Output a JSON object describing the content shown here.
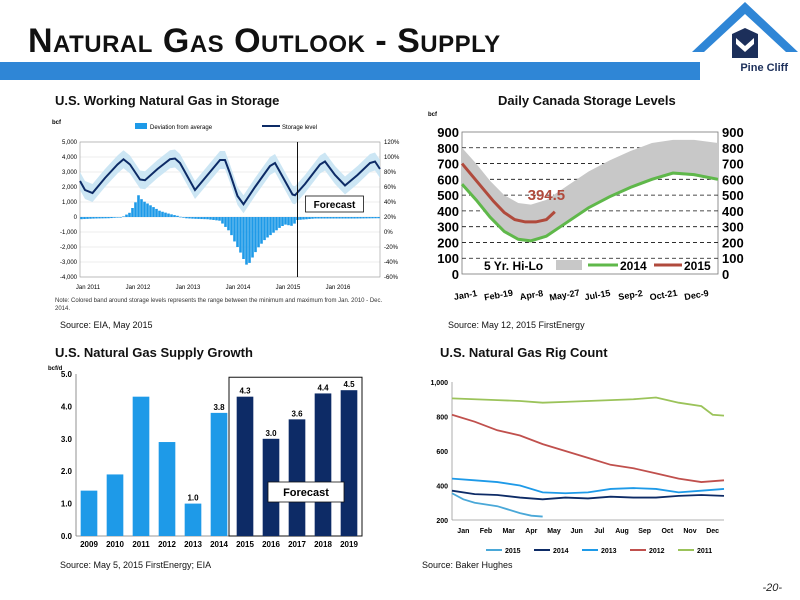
{
  "slide": {
    "title": "Natural Gas Outlook - Supply",
    "logo_text": "Pine Cliff",
    "page_number": "-20-"
  },
  "colors": {
    "band": "#2f86d6",
    "navy": "#0d2b66",
    "lightblue": "#1e9ae8",
    "shade": "#c7e3f3"
  },
  "panels": {
    "storage": {
      "title": "U.S. Working Natural Gas in Storage",
      "unit": "bcf",
      "legend": [
        "Deviation from average",
        "Storage level"
      ],
      "forecast_label": "Forecast",
      "note": "Note: Colored band around storage levels represents the range between the minimum and maximum from Jan. 2010 - Dec. 2014.",
      "source": "Source: EIA, May 2015"
    },
    "canada": {
      "title": "Daily Canada Storage Levels",
      "unit": "bcf",
      "callout": "394.5",
      "source": "Source: May 12, 2015 FirstEnergy"
    },
    "supply": {
      "title": "U.S. Natural Gas Supply Growth",
      "unit": "bcf/d",
      "forecast_label": "Forecast",
      "source": "Source: May 5, 2015 FirstEnergy; EIA"
    },
    "rigs": {
      "title": "U.S. Natural Gas Rig Count",
      "source": "Source: Baker Hughes"
    }
  },
  "chart_data": [
    {
      "type": "line",
      "title": "U.S. Working Natural Gas in Storage",
      "x_ticks": [
        "Jan 2011",
        "Jan 2012",
        "Jan 2013",
        "Jan 2014",
        "Jan 2015",
        "Jan 2016"
      ],
      "y_ticks": [
        "-4,000",
        "-3,000",
        "-2,000",
        "-1,000",
        "0",
        "1,000",
        "2,000",
        "3,000",
        "4,000",
        "5,000"
      ],
      "y2_ticks": [
        "-60%",
        "-40%",
        "-20%",
        "0%",
        "20%",
        "40%",
        "60%",
        "80%",
        "100%",
        "120%"
      ],
      "ylim": [
        -4000,
        5000
      ],
      "x_range": [
        2011.0,
        2017.0
      ],
      "forecast_start": 2015.35,
      "series": [
        {
          "name": "Storage level",
          "points": [
            [
              2011.0,
              2400
            ],
            [
              2011.1,
              1800
            ],
            [
              2011.25,
              1600
            ],
            [
              2011.5,
              2600
            ],
            [
              2011.75,
              3500
            ],
            [
              2011.87,
              3850
            ],
            [
              2012.0,
              3500
            ],
            [
              2012.2,
              2500
            ],
            [
              2012.3,
              2450
            ],
            [
              2012.55,
              3200
            ],
            [
              2012.8,
              3850
            ],
            [
              2012.9,
              3900
            ],
            [
              2013.0,
              3600
            ],
            [
              2013.15,
              2700
            ],
            [
              2013.3,
              1800
            ],
            [
              2013.55,
              2800
            ],
            [
              2013.8,
              3800
            ],
            [
              2013.9,
              3800
            ],
            [
              2014.0,
              2900
            ],
            [
              2014.15,
              1400
            ],
            [
              2014.27,
              850
            ],
            [
              2014.5,
              2000
            ],
            [
              2014.8,
              3400
            ],
            [
              2014.9,
              3600
            ],
            [
              2015.05,
              2700
            ],
            [
              2015.25,
              1500
            ],
            [
              2015.3,
              1450
            ],
            [
              2015.5,
              2200
            ],
            [
              2015.8,
              3500
            ],
            [
              2015.9,
              3700
            ],
            [
              2016.1,
              2800
            ],
            [
              2016.3,
              2100
            ],
            [
              2016.55,
              2800
            ],
            [
              2016.8,
              3600
            ],
            [
              2016.9,
              3700
            ],
            [
              2017.0,
              3200
            ]
          ]
        },
        {
          "name": "Deviation from average",
          "points": [
            [
              2011.0,
              -150
            ],
            [
              2011.3,
              -100
            ],
            [
              2011.6,
              -80
            ],
            [
              2011.85,
              0
            ],
            [
              2012.0,
              300
            ],
            [
              2012.1,
              900
            ],
            [
              2012.17,
              1450
            ],
            [
              2012.25,
              1100
            ],
            [
              2012.4,
              800
            ],
            [
              2012.6,
              400
            ],
            [
              2012.8,
              200
            ],
            [
              2012.95,
              80
            ],
            [
              2013.1,
              -80
            ],
            [
              2013.3,
              -120
            ],
            [
              2013.55,
              -150
            ],
            [
              2013.8,
              -250
            ],
            [
              2014.0,
              -1000
            ],
            [
              2014.1,
              -1700
            ],
            [
              2014.2,
              -2300
            ],
            [
              2014.27,
              -2800
            ],
            [
              2014.35,
              -3300
            ],
            [
              2014.45,
              -2700
            ],
            [
              2014.55,
              -2100
            ],
            [
              2014.7,
              -1500
            ],
            [
              2014.85,
              -1100
            ],
            [
              2015.0,
              -700
            ],
            [
              2015.1,
              -500
            ],
            [
              2015.25,
              -600
            ],
            [
              2015.35,
              -200
            ],
            [
              2015.7,
              -100
            ],
            [
              2016.0,
              -100
            ],
            [
              2016.5,
              -100
            ],
            [
              2017.0,
              -80
            ]
          ]
        }
      ]
    },
    {
      "type": "line",
      "title": "Daily Canada Storage Levels",
      "x_ticks": [
        "Jan-1",
        "Feb-19",
        "Apr-8",
        "May-27",
        "Jul-15",
        "Sep-2",
        "Oct-21",
        "Dec-9"
      ],
      "y_ticks": [
        "0",
        "100",
        "200",
        "300",
        "400",
        "500",
        "600",
        "700",
        "800",
        "900"
      ],
      "ylim": [
        0,
        900
      ],
      "legend": [
        "5 Yr. Hi-Lo",
        "2014",
        "2015"
      ],
      "series": [
        {
          "name": "2014",
          "points": [
            [
              0,
              570
            ],
            [
              20,
              470
            ],
            [
              40,
              360
            ],
            [
              60,
              270
            ],
            [
              80,
              220
            ],
            [
              98,
              210
            ],
            [
              120,
              240
            ],
            [
              150,
              330
            ],
            [
              180,
              420
            ],
            [
              210,
              490
            ],
            [
              240,
              550
            ],
            [
              270,
              600
            ],
            [
              300,
              640
            ],
            [
              330,
              630
            ],
            [
              364,
              600
            ]
          ]
        },
        {
          "name": "2015",
          "points": [
            [
              0,
              700
            ],
            [
              15,
              620
            ],
            [
              30,
              540
            ],
            [
              45,
              460
            ],
            [
              60,
              390
            ],
            [
              75,
              345
            ],
            [
              90,
              330
            ],
            [
              105,
              330
            ],
            [
              120,
              345
            ],
            [
              132,
              394.5
            ]
          ]
        }
      ]
    },
    {
      "type": "bar",
      "title": "U.S. Natural Gas Supply Growth",
      "categories": [
        "2009",
        "2010",
        "2011",
        "2012",
        "2013",
        "2014",
        "2015",
        "2016",
        "2017",
        "2018",
        "2019"
      ],
      "values": [
        1.4,
        1.9,
        4.3,
        2.9,
        1.0,
        3.8,
        4.3,
        3.0,
        3.6,
        4.4,
        4.5
      ],
      "labels": [
        "",
        "",
        "",
        "",
        "1.0",
        "3.8",
        "4.3",
        "3.0",
        "3.6",
        "4.4",
        "4.5"
      ],
      "y_ticks": [
        "0.0",
        "1.0",
        "2.0",
        "3.0",
        "4.0",
        "5.0"
      ],
      "ylim": [
        0,
        5
      ],
      "forecast_from_index": 6
    },
    {
      "type": "line",
      "title": "U.S. Natural Gas Rig Count",
      "x_ticks": [
        "Jan",
        "Feb",
        "Mar",
        "Apr",
        "May",
        "Jun",
        "Jul",
        "Aug",
        "Sep",
        "Oct",
        "Nov",
        "Dec"
      ],
      "y_ticks": [
        "200",
        "400",
        "600",
        "800",
        "1,000"
      ],
      "ylim": [
        200,
        1000
      ],
      "series": [
        {
          "name": "2011",
          "points": [
            [
              0,
              905
            ],
            [
              1,
              900
            ],
            [
              2,
              895
            ],
            [
              3,
              890
            ],
            [
              4,
              880
            ],
            [
              5,
              885
            ],
            [
              6,
              890
            ],
            [
              7,
              895
            ],
            [
              8,
              900
            ],
            [
              9,
              910
            ],
            [
              10,
              880
            ],
            [
              11,
              860
            ],
            [
              11.5,
              810
            ],
            [
              12,
              805
            ]
          ]
        },
        {
          "name": "2012",
          "points": [
            [
              0,
              810
            ],
            [
              1,
              770
            ],
            [
              2,
              720
            ],
            [
              3,
              690
            ],
            [
              4,
              640
            ],
            [
              5,
              600
            ],
            [
              6,
              560
            ],
            [
              7,
              520
            ],
            [
              8,
              500
            ],
            [
              9,
              470
            ],
            [
              10,
              440
            ],
            [
              11,
              420
            ],
            [
              12,
              430
            ]
          ]
        },
        {
          "name": "2013",
          "points": [
            [
              0,
              440
            ],
            [
              1,
              430
            ],
            [
              2,
              420
            ],
            [
              3,
              400
            ],
            [
              4,
              360
            ],
            [
              5,
              355
            ],
            [
              6,
              360
            ],
            [
              7,
              380
            ],
            [
              8,
              385
            ],
            [
              9,
              380
            ],
            [
              10,
              360
            ],
            [
              11,
              370
            ],
            [
              12,
              380
            ]
          ]
        },
        {
          "name": "2014",
          "points": [
            [
              0,
              370
            ],
            [
              1,
              350
            ],
            [
              2,
              345
            ],
            [
              3,
              330
            ],
            [
              4,
              320
            ],
            [
              5,
              330
            ],
            [
              6,
              325
            ],
            [
              7,
              335
            ],
            [
              8,
              330
            ],
            [
              9,
              330
            ],
            [
              10,
              340
            ],
            [
              11,
              345
            ],
            [
              12,
              340
            ]
          ]
        },
        {
          "name": "2015",
          "points": [
            [
              0,
              355
            ],
            [
              0.5,
              320
            ],
            [
              1,
              300
            ],
            [
              2,
              280
            ],
            [
              3,
              240
            ],
            [
              3.5,
              225
            ],
            [
              4,
              220
            ]
          ]
        }
      ]
    }
  ]
}
